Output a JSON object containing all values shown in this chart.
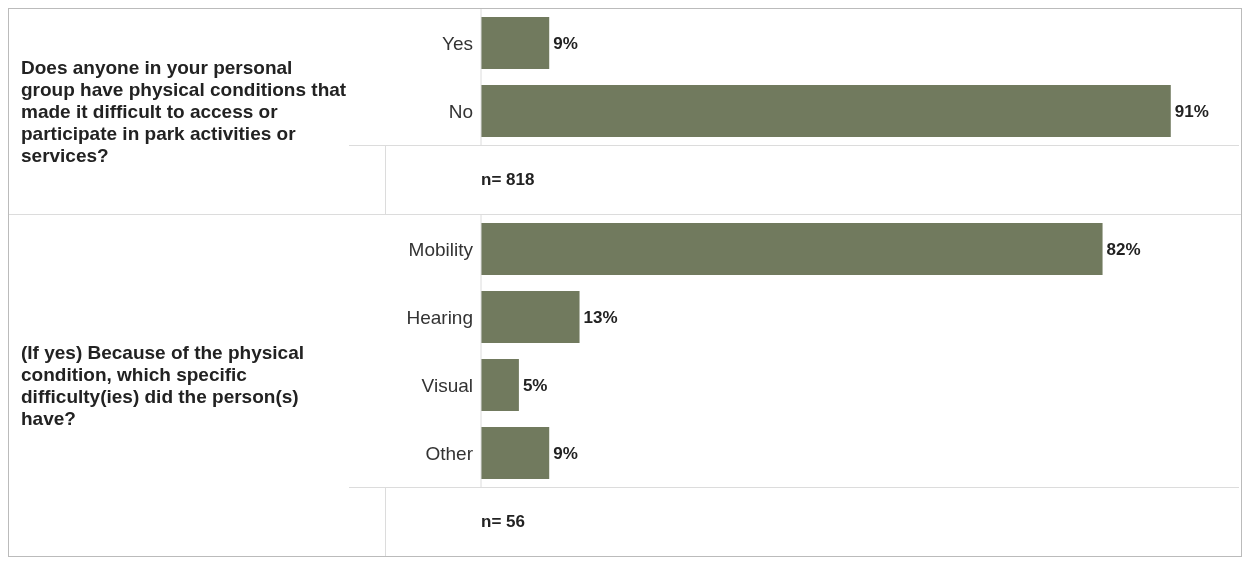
{
  "chart_data": [
    {
      "type": "bar",
      "orientation": "horizontal",
      "title": "Does anyone in your personal group have physical conditions that made it difficult to access or participate in park activities or services?",
      "categories": [
        "Yes",
        "No"
      ],
      "values": [
        9,
        91
      ],
      "value_labels": [
        "9%",
        "91%"
      ],
      "color": "#717a5e",
      "xlim": [
        0,
        100
      ],
      "tick_labels": "y",
      "grid": false,
      "legend": false,
      "annotations": [
        "n= 818"
      ]
    },
    {
      "type": "bar",
      "orientation": "horizontal",
      "title": "(If yes) Because of the physical condition, which specific difficulty(ies) did the person(s) have?",
      "categories": [
        "Mobility",
        "Hearing",
        "Visual",
        "Other"
      ],
      "values": [
        82,
        13,
        5,
        9
      ],
      "value_labels": [
        "82%",
        "13%",
        "5%",
        "9%"
      ],
      "color": "#717a5e",
      "xlim": [
        0,
        100
      ],
      "tick_labels": "y",
      "grid": false,
      "legend": false,
      "annotations": [
        "n= 56"
      ]
    }
  ]
}
